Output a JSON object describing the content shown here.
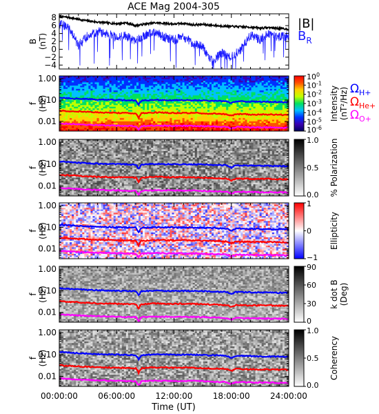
{
  "figure_title": "ACE Mag 2004-305",
  "colors": {
    "B_total": "#000000",
    "B_R": "#1a1aff",
    "omega_H": "#0000ff",
    "omega_He": "#ff0000",
    "omega_O": "#ff00ff",
    "frame": "#000000",
    "background": "#ffffff"
  },
  "chart_data": [
    {
      "id": "B",
      "type": "line",
      "ylabel_main": "B",
      "ylabel_unit": "(nT)",
      "ylim": [
        -5,
        9
      ],
      "yticks": [
        -4,
        -2,
        0,
        2,
        4,
        6,
        8
      ],
      "xlim_hours": [
        0,
        24
      ],
      "legend": [
        {
          "label": "|B|",
          "color": "#000000"
        },
        {
          "label": "B",
          "sub": "R",
          "color": "#1a1aff"
        }
      ],
      "series": [
        {
          "name": "|B|",
          "x_hours": [
            0,
            1,
            2,
            3,
            4,
            5,
            6,
            7,
            8,
            9,
            10,
            11,
            12,
            13,
            14,
            15,
            16,
            17,
            18,
            19,
            20,
            21,
            22,
            23,
            24
          ],
          "values": [
            8.3,
            8.1,
            7.6,
            7.2,
            6.9,
            6.7,
            6.5,
            6.7,
            6.0,
            6.4,
            6.7,
            6.6,
            6.4,
            6.6,
            6.2,
            6.3,
            6.1,
            5.9,
            5.8,
            5.7,
            5.6,
            5.4,
            5.5,
            5.3,
            5.1
          ]
        },
        {
          "name": "B_R",
          "x_hours": [
            0,
            1,
            2,
            3,
            4,
            5,
            6,
            7,
            8,
            9,
            10,
            11,
            12,
            13,
            14,
            15,
            16,
            17,
            18,
            19,
            20,
            21,
            22,
            23,
            24
          ],
          "values": [
            6.5,
            5.5,
            1.0,
            3.5,
            4.5,
            4.0,
            3.0,
            3.5,
            2.0,
            3.5,
            4.5,
            3.0,
            2.5,
            3.0,
            1.5,
            0.5,
            -3.0,
            -1.0,
            -2.0,
            0.0,
            3.5,
            2.5,
            4.0,
            3.0,
            3.5
          ]
        }
      ]
    },
    {
      "id": "intensity",
      "type": "heatmap",
      "ylabel_main": "f",
      "ylabel_unit": "(Hz)",
      "yticks": [
        "1.00",
        "0.10",
        "0.01"
      ],
      "scale": "log",
      "colorbar_label": "Intensity",
      "colorbar_unit": "(nT²/Hz)",
      "colorbar_ticks": [
        {
          "base": "10",
          "exp": "0"
        },
        {
          "base": "10",
          "exp": "-1"
        },
        {
          "base": "10",
          "exp": "-2"
        },
        {
          "base": "10",
          "exp": "-3"
        },
        {
          "base": "10",
          "exp": "-4"
        },
        {
          "base": "10",
          "exp": "-5"
        },
        {
          "base": "10",
          "exp": "-6"
        }
      ],
      "side_legend": [
        {
          "symbol": "Ω",
          "sub": "H+",
          "color": "#0000ff"
        },
        {
          "symbol": "Ω",
          "sub": "He+",
          "color": "#ff0000"
        },
        {
          "symbol": "Ω",
          "sub": "O+",
          "color": "#ff00ff"
        }
      ]
    },
    {
      "id": "polarization",
      "type": "heatmap",
      "ylabel_main": "f",
      "ylabel_unit": "(Hz)",
      "yticks": [
        "1.00",
        "0.10",
        "0.01"
      ],
      "colorbar_label": "% Polarization",
      "colorbar_ticks": [
        "1.0",
        "0.5",
        "0.0"
      ]
    },
    {
      "id": "ellipticity",
      "type": "heatmap",
      "ylabel_main": "f",
      "ylabel_unit": "(Hz)",
      "yticks": [
        "1.00",
        "0.10",
        "0.01"
      ],
      "colorbar_label": "Ellipticity",
      "colorbar_ticks": [
        "1",
        "0",
        "−1"
      ]
    },
    {
      "id": "kdotb",
      "type": "heatmap",
      "ylabel_main": "f",
      "ylabel_unit": "(Hz)",
      "yticks": [
        "1.00",
        "0.10",
        "0.01"
      ],
      "colorbar_label": "k dot B",
      "colorbar_unit": "(Deg)",
      "colorbar_ticks": [
        "90",
        "60",
        "30",
        "0"
      ]
    },
    {
      "id": "coherency",
      "type": "heatmap",
      "ylabel_main": "f",
      "ylabel_unit": "(Hz)",
      "yticks": [
        "1.00",
        "0.10",
        "0.01"
      ],
      "colorbar_label": "Coherency",
      "colorbar_ticks": [
        "1.0",
        "0.5",
        "0.0"
      ]
    }
  ],
  "gyrofrequencies": {
    "x_hours": [
      0,
      2,
      4,
      6,
      8,
      8.3,
      8.6,
      10,
      12,
      14,
      16,
      17.5,
      18,
      18.5,
      20,
      22,
      24
    ],
    "H_plus_hz": [
      0.13,
      0.115,
      0.105,
      0.1,
      0.095,
      0.06,
      0.095,
      0.102,
      0.098,
      0.098,
      0.092,
      0.088,
      0.07,
      0.088,
      0.085,
      0.082,
      0.08
    ],
    "He_plus_hz": [
      0.032,
      0.029,
      0.026,
      0.025,
      0.024,
      0.015,
      0.024,
      0.026,
      0.025,
      0.025,
      0.023,
      0.022,
      0.018,
      0.022,
      0.021,
      0.021,
      0.02
    ],
    "O_plus_hz": [
      0.008,
      0.0072,
      0.0066,
      0.0063,
      0.006,
      0.004,
      0.006,
      0.0064,
      0.0062,
      0.0062,
      0.0058,
      0.0055,
      0.0045,
      0.0055,
      0.0053,
      0.0052,
      0.005
    ]
  },
  "x_axis": {
    "label": "Time (UT)",
    "tick_hours": [
      0,
      6,
      12,
      18,
      24
    ],
    "tick_labels": [
      "00:00:00",
      "06:00:00",
      "12:00:00",
      "18:00:00",
      "24:00:00"
    ]
  }
}
